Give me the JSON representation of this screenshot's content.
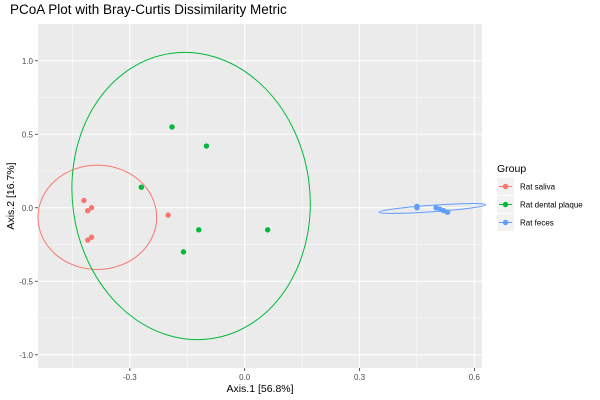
{
  "chart_data": {
    "type": "scatter",
    "title": "PCoA Plot with Bray-Curtis Dissimilarity Metric",
    "xlabel": "Axis.1   [56.8%]",
    "ylabel": "Axis.2   [16.7%]",
    "xlim": [
      -0.54,
      0.62
    ],
    "ylim": [
      -1.09,
      1.25
    ],
    "xticks": [
      -0.3,
      0.0,
      0.3,
      0.6
    ],
    "xtick_labels": [
      "-0.3",
      "0.0",
      "0.3",
      "0.6"
    ],
    "yticks": [
      -1.0,
      -0.5,
      0.0,
      0.5,
      1.0
    ],
    "ytick_labels": [
      "-1.0",
      "-0.5",
      "0.0",
      "0.5",
      "1.0"
    ],
    "grid": true,
    "legend": {
      "title": "Group",
      "placement": "right"
    },
    "series": [
      {
        "name": "Rat saliva",
        "color": "#F8766D",
        "points": [
          {
            "x": -0.42,
            "y": 0.05
          },
          {
            "x": -0.41,
            "y": -0.02
          },
          {
            "x": -0.4,
            "y": 0.0
          },
          {
            "x": -0.4,
            "y": -0.2
          },
          {
            "x": -0.41,
            "y": -0.22
          },
          {
            "x": -0.2,
            "y": -0.05
          }
        ],
        "ellipse": {
          "cx": -0.385,
          "cy": -0.065,
          "rx": 0.155,
          "ry": 0.355,
          "angle": 0
        }
      },
      {
        "name": "Rat dental plaque",
        "color": "#00BA38",
        "points": [
          {
            "x": -0.19,
            "y": 0.55
          },
          {
            "x": -0.1,
            "y": 0.42
          },
          {
            "x": -0.27,
            "y": 0.14
          },
          {
            "x": -0.12,
            "y": -0.15
          },
          {
            "x": -0.16,
            "y": -0.3
          },
          {
            "x": 0.06,
            "y": -0.15
          }
        ],
        "ellipse": {
          "cx": -0.14,
          "cy": 0.08,
          "rx": 0.31,
          "ry": 0.98,
          "angle": -8
        }
      },
      {
        "name": "Rat feces",
        "color": "#619CFF",
        "points": [
          {
            "x": 0.45,
            "y": 0.0
          },
          {
            "x": 0.45,
            "y": 0.01
          },
          {
            "x": 0.5,
            "y": 0.0
          },
          {
            "x": 0.51,
            "y": -0.01
          },
          {
            "x": 0.52,
            "y": -0.02
          },
          {
            "x": 0.53,
            "y": -0.03
          }
        ],
        "ellipse": {
          "cx": 0.49,
          "cy": -0.005,
          "rx": 0.14,
          "ry": 0.022,
          "angle": -4
        }
      }
    ]
  }
}
